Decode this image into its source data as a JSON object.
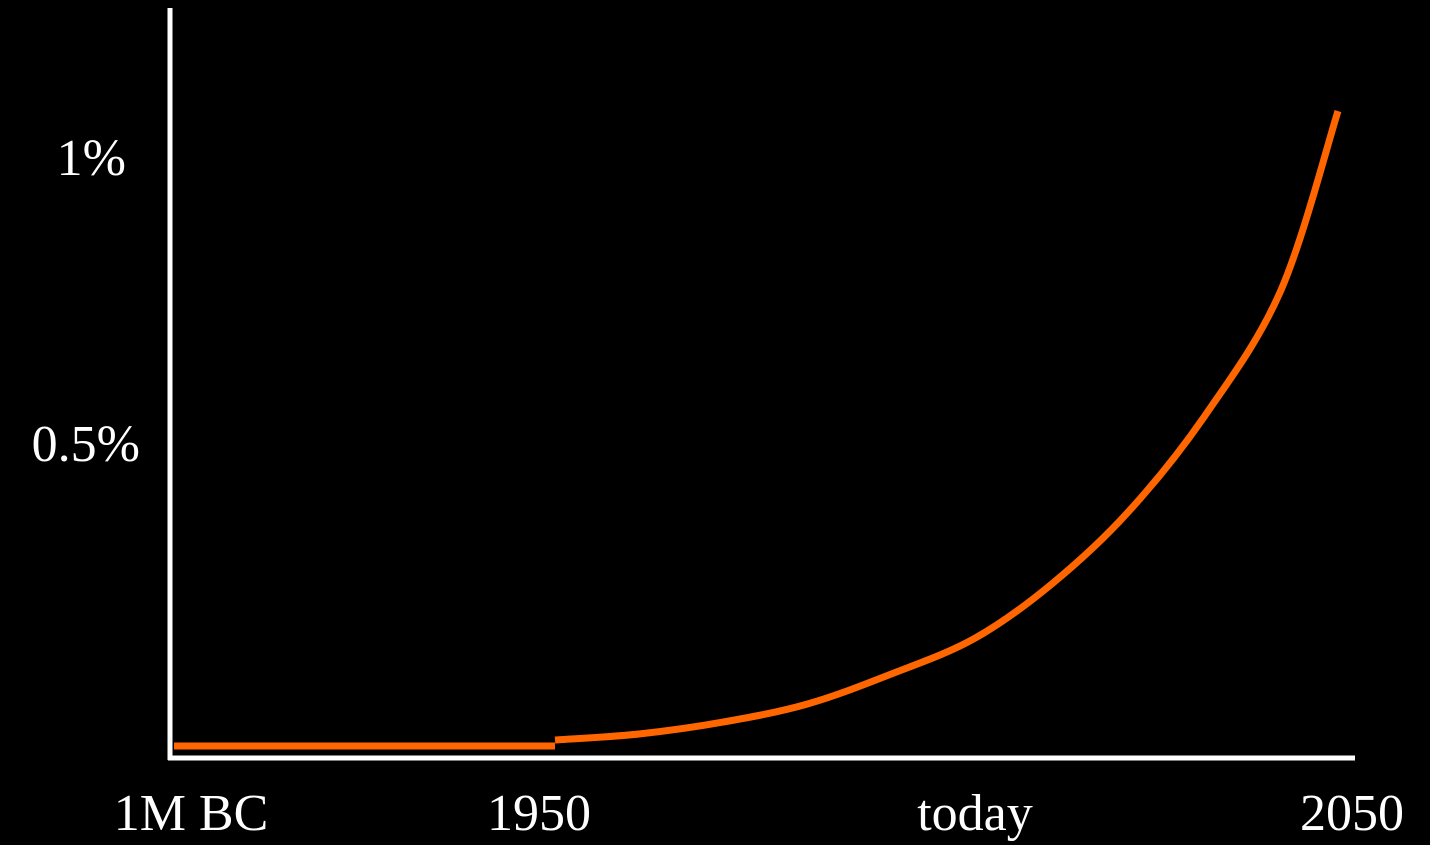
{
  "chart_data": {
    "type": "line",
    "title": "",
    "xlabel": "",
    "ylabel": "",
    "x_ticks": [
      "1M BC",
      "1950",
      "today",
      "2050"
    ],
    "y_ticks": [
      {
        "value": 0.5,
        "label": "0.5%"
      },
      {
        "value": 1.0,
        "label": "1%"
      }
    ],
    "ylim": [
      0,
      1.12
    ],
    "x_axis_note": "categorical eras, not to scale",
    "series": [
      {
        "segments": [
          {
            "from": "1M BC",
            "to": "1950",
            "x": [
              0,
              1
            ],
            "y": [
              0.02,
              0.02
            ]
          },
          {
            "from": "1950",
            "to": "2050",
            "x": [
              1.0,
              1.2,
              1.4,
              1.6,
              1.8,
              2.0,
              2.2,
              2.4,
              2.6,
              2.8,
              2.95
            ],
            "y": [
              0.03,
              0.04,
              0.06,
              0.09,
              0.14,
              0.2,
              0.29,
              0.41,
              0.57,
              0.78,
              1.08
            ]
          }
        ]
      }
    ],
    "colors": {
      "background": "#000000",
      "axis": "#ffffff",
      "line": "#ff6600"
    }
  }
}
